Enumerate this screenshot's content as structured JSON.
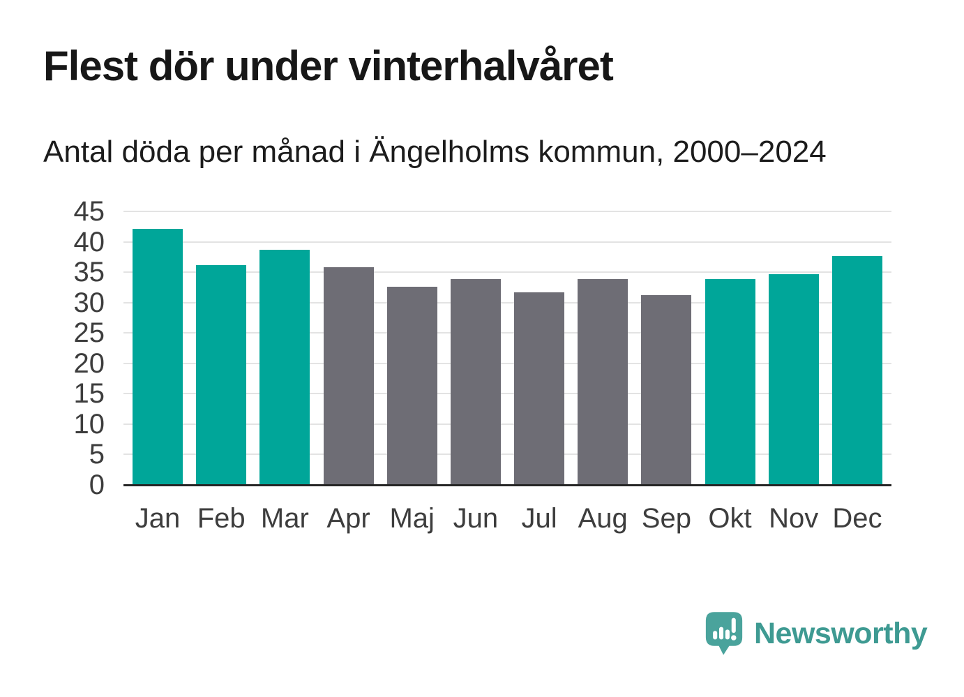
{
  "header": {
    "title": "Flest dör under vinterhalvåret",
    "subtitle": "Antal döda per månad i Ängelholms kommun, 2000–2024"
  },
  "chart_data": {
    "type": "bar",
    "title": "Flest dör under vinterhalvåret",
    "subtitle": "Antal döda per månad i Ängelholms kommun, 2000–2024",
    "categories": [
      "Jan",
      "Feb",
      "Mar",
      "Apr",
      "Maj",
      "Jun",
      "Jul",
      "Aug",
      "Sep",
      "Okt",
      "Nov",
      "Dec"
    ],
    "values": [
      42.1,
      36.2,
      38.7,
      35.8,
      32.6,
      33.9,
      31.7,
      33.9,
      31.2,
      33.9,
      34.7,
      37.6
    ],
    "bar_color_keys": [
      "winter",
      "winter",
      "winter",
      "summer",
      "summer",
      "summer",
      "summer",
      "summer",
      "summer",
      "winter",
      "winter",
      "winter"
    ],
    "palette": {
      "winter": "#00A699",
      "summer": "#6E6D75"
    },
    "xlabel": "",
    "ylabel": "",
    "ylim": [
      0,
      45
    ],
    "yticks": [
      0,
      5,
      10,
      15,
      20,
      25,
      30,
      35,
      40,
      45
    ],
    "grid": "horizontal-light",
    "gridline_color": "#e3e3e3",
    "axis_color": "#262626",
    "legend": "none"
  },
  "branding": {
    "logo_text": "Newsworthy",
    "text_color": "#3E9A92",
    "icon_color": "#4AA39C"
  }
}
